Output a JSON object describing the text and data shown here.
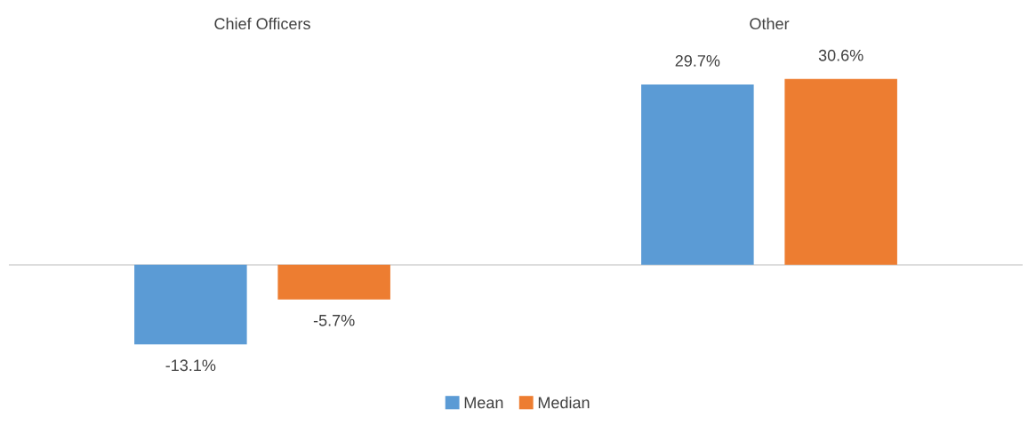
{
  "chart_data": {
    "type": "bar",
    "categories": [
      "Chief Officers",
      "Other"
    ],
    "series": [
      {
        "name": "Mean",
        "color": "#5b9bd5",
        "values": [
          -13.1,
          29.7
        ],
        "value_labels": [
          "-13.1%",
          "29.7%"
        ]
      },
      {
        "name": "Median",
        "color": "#ed7d31",
        "values": [
          -5.7,
          30.6
        ],
        "value_labels": [
          "-5.7%",
          "30.6%"
        ]
      }
    ],
    "legend": "bottom"
  }
}
